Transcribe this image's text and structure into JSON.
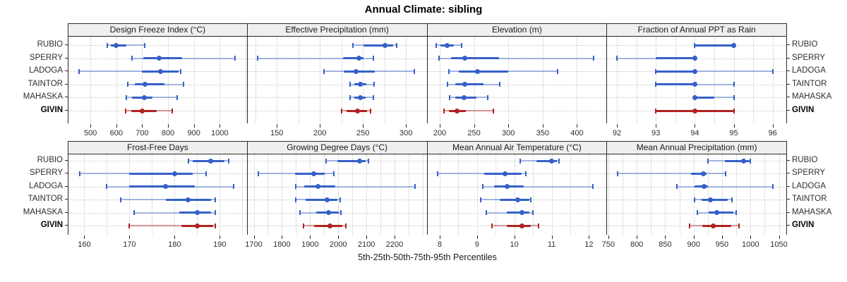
{
  "title": "Annual Climate: sibling",
  "xlabel": "5th-25th-50th-75th-95th Percentiles",
  "sites": [
    "RUBIO",
    "SPERRY",
    "LADOGA",
    "TAINTOR",
    "MAHASKA",
    "GIVIN"
  ],
  "highlight_site": "GIVIN",
  "percentile_labels": [
    "5th",
    "25th",
    "50th",
    "75th",
    "95th"
  ],
  "colors": {
    "series": "#3560c8",
    "series_light": "rgba(53,96,200,0.42)",
    "highlight": "#b22222",
    "highlight_light": "rgba(178,34,34,0.45)",
    "grid": "#c7c7c7",
    "strip_bg": "#efefef",
    "border": "#2b2b2b"
  },
  "chart_data": [
    {
      "type": "dotplot-interval",
      "title": "Design Freeze Index (°C)",
      "xlim": [
        415,
        1105
      ],
      "ticks": [
        500,
        600,
        700,
        800,
        900,
        1000
      ],
      "grid_step": 100,
      "series": [
        {
          "name": "RUBIO",
          "values": [
            565,
            580,
            600,
            640,
            710
          ]
        },
        {
          "name": "SPERRY",
          "values": [
            660,
            705,
            765,
            855,
            1060
          ]
        },
        {
          "name": "LADOGA",
          "values": [
            455,
            700,
            772,
            840,
            850
          ]
        },
        {
          "name": "TAINTOR",
          "values": [
            645,
            672,
            712,
            785,
            860
          ]
        },
        {
          "name": "MAHASKA",
          "values": [
            640,
            662,
            708,
            740,
            835
          ]
        },
        {
          "name": "GIVIN",
          "values": [
            635,
            658,
            700,
            757,
            815
          ]
        }
      ]
    },
    {
      "type": "dotplot-interval",
      "title": "Effective Precipitation (mm)",
      "xlim": [
        116,
        324
      ],
      "ticks": [
        150,
        200,
        250,
        300
      ],
      "grid_step": 25,
      "series": [
        {
          "name": "RUBIO",
          "values": [
            238,
            251,
            276,
            285,
            289
          ]
        },
        {
          "name": "SPERRY",
          "values": [
            128,
            227,
            245,
            251,
            262
          ]
        },
        {
          "name": "LADOGA",
          "values": [
            205,
            228,
            242,
            264,
            310
          ]
        },
        {
          "name": "TAINTOR",
          "values": [
            235,
            240,
            247,
            254,
            263
          ]
        },
        {
          "name": "MAHASKA",
          "values": [
            235,
            240,
            247,
            253,
            262
          ]
        },
        {
          "name": "GIVIN",
          "values": [
            225,
            231,
            244,
            255,
            259
          ]
        }
      ]
    },
    {
      "type": "dotplot-interval",
      "title": "Elevation (m)",
      "xlim": [
        182,
        443
      ],
      "ticks": [
        200,
        250,
        300,
        350,
        400
      ],
      "grid_step": 50,
      "series": [
        {
          "name": "RUBIO",
          "values": [
            195,
            201,
            211,
            221,
            232
          ]
        },
        {
          "name": "SPERRY",
          "values": [
            199,
            216,
            237,
            286,
            424
          ]
        },
        {
          "name": "LADOGA",
          "values": [
            213,
            228,
            255,
            300,
            372
          ]
        },
        {
          "name": "TAINTOR",
          "values": [
            211,
            223,
            236,
            264,
            287
          ]
        },
        {
          "name": "MAHASKA",
          "values": [
            214,
            223,
            235,
            254,
            270
          ]
        },
        {
          "name": "GIVIN",
          "values": [
            206,
            213,
            225,
            238,
            278
          ]
        }
      ]
    },
    {
      "type": "dotplot-interval",
      "title": "Fraction of Annual PPT as Rain",
      "xlim": [
        91.75,
        96.35
      ],
      "ticks": [
        92,
        93,
        94,
        95,
        96
      ],
      "grid_step": 0.5,
      "series": [
        {
          "name": "RUBIO",
          "values": [
            94,
            94,
            95,
            95,
            95
          ]
        },
        {
          "name": "SPERRY",
          "values": [
            92,
            93,
            94,
            94,
            94
          ]
        },
        {
          "name": "LADOGA",
          "values": [
            93,
            93,
            94,
            94,
            96
          ]
        },
        {
          "name": "TAINTOR",
          "values": [
            93,
            93,
            94,
            94,
            95
          ]
        },
        {
          "name": "MAHASKA",
          "values": [
            94,
            94,
            94,
            94.5,
            95
          ]
        },
        {
          "name": "GIVIN",
          "values": [
            93,
            93,
            94,
            95,
            95
          ]
        }
      ]
    },
    {
      "type": "dotplot-interval",
      "title": "Frost-Free Days",
      "xlim": [
        156.5,
        196
      ],
      "ticks": [
        160,
        170,
        180,
        190
      ],
      "grid_step": 5,
      "series": [
        {
          "name": "RUBIO",
          "values": [
            183,
            184,
            188,
            191,
            192
          ]
        },
        {
          "name": "SPERRY",
          "values": [
            159,
            170,
            180,
            184,
            187
          ]
        },
        {
          "name": "LADOGA",
          "values": [
            165,
            170,
            178,
            184.5,
            193
          ]
        },
        {
          "name": "TAINTOR",
          "values": [
            168,
            178,
            183,
            188,
            189
          ]
        },
        {
          "name": "MAHASKA",
          "values": [
            171,
            181,
            185,
            188,
            189
          ]
        },
        {
          "name": "GIVIN",
          "values": [
            170,
            181.5,
            185,
            188.5,
            189
          ]
        }
      ]
    },
    {
      "type": "dotplot-interval",
      "title": "Growing Degree Days (°C)",
      "xlim": [
        1678,
        2314
      ],
      "ticks": [
        1700,
        1800,
        1900,
        2000,
        2100,
        2200
      ],
      "grid_step": 50,
      "series": [
        {
          "name": "RUBIO",
          "values": [
            1958,
            1998,
            2075,
            2096,
            2106
          ]
        },
        {
          "name": "SPERRY",
          "values": [
            1715,
            1846,
            1913,
            1952,
            1985
          ]
        },
        {
          "name": "LADOGA",
          "values": [
            1850,
            1880,
            1927,
            1989,
            2272
          ]
        },
        {
          "name": "TAINTOR",
          "values": [
            1850,
            1883,
            1960,
            1998,
            2008
          ]
        },
        {
          "name": "MAHASKA",
          "values": [
            1863,
            1923,
            1966,
            2002,
            2010
          ]
        },
        {
          "name": "GIVIN",
          "values": [
            1877,
            1915,
            1971,
            2014,
            2027
          ]
        }
      ]
    },
    {
      "type": "dotplot-interval",
      "title": "Mean Annual Air Temperature (°C)",
      "xlim": [
        7.67,
        12.47
      ],
      "ticks": [
        8,
        9,
        10,
        11,
        12
      ],
      "grid_step": 0.5,
      "series": [
        {
          "name": "RUBIO",
          "values": [
            10.15,
            10.6,
            11.0,
            11.15,
            11.2
          ]
        },
        {
          "name": "SPERRY",
          "values": [
            7.95,
            9.2,
            9.75,
            10.2,
            10.3
          ]
        },
        {
          "name": "LADOGA",
          "values": [
            9.15,
            9.45,
            9.8,
            10.25,
            12.1
          ]
        },
        {
          "name": "TAINTOR",
          "values": [
            9.1,
            9.6,
            10.1,
            10.4,
            10.45
          ]
        },
        {
          "name": "MAHASKA",
          "values": [
            9.25,
            9.8,
            10.2,
            10.4,
            10.5
          ]
        },
        {
          "name": "GIVIN",
          "values": [
            9.4,
            9.8,
            10.2,
            10.45,
            10.65
          ]
        }
      ]
    },
    {
      "type": "dotplot-interval",
      "title": "Mean Annual Precipitation (mm)",
      "xlim": [
        748,
        1063
      ],
      "ticks": [
        750,
        800,
        850,
        900,
        950,
        1000,
        1050
      ],
      "grid_step": 25,
      "series": [
        {
          "name": "RUBIO",
          "values": [
            925,
            955,
            988,
            999,
            1000
          ]
        },
        {
          "name": "SPERRY",
          "values": [
            766,
            896,
            917,
            923,
            956
          ]
        },
        {
          "name": "LADOGA",
          "values": [
            870,
            902,
            918,
            925,
            1040
          ]
        },
        {
          "name": "TAINTOR",
          "values": [
            902,
            914,
            930,
            960,
            968
          ]
        },
        {
          "name": "MAHASKA",
          "values": [
            906,
            927,
            941,
            970,
            975
          ]
        },
        {
          "name": "GIVIN",
          "values": [
            893,
            915,
            935,
            966,
            980
          ]
        }
      ]
    }
  ]
}
